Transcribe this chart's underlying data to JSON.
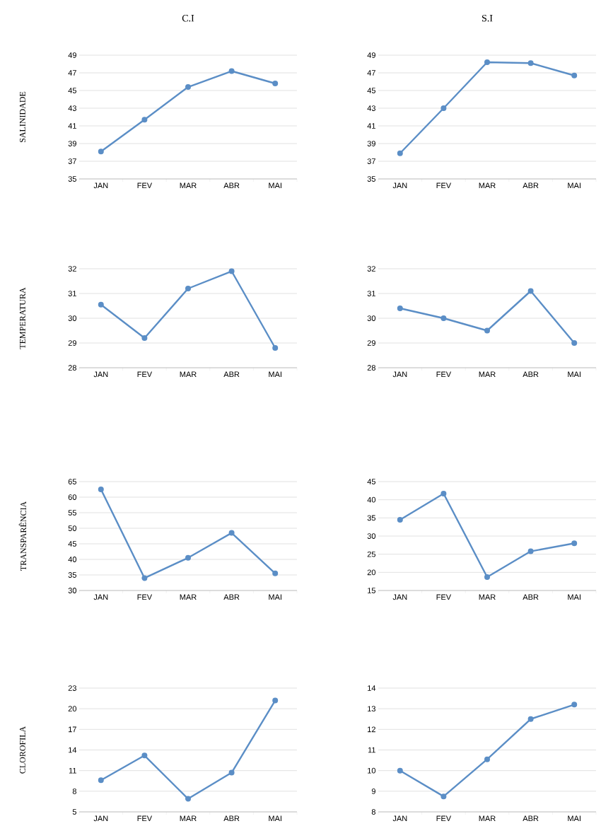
{
  "chart_data": [
    {
      "type": "line",
      "title": "C.I",
      "ylabel": "SALINIDADE",
      "categories": [
        "JAN",
        "FEV",
        "MAR",
        "ABR",
        "MAI"
      ],
      "series": [
        {
          "color": "#5b8ec6",
          "values": [
            38.1,
            41.7,
            45.4,
            47.2,
            45.8
          ]
        }
      ],
      "ylim": [
        35,
        49
      ],
      "yticks": [
        35,
        37,
        39,
        41,
        43,
        45,
        47,
        49
      ],
      "grid": "y",
      "marker": "circle"
    },
    {
      "type": "line",
      "title": "S.I",
      "categories": [
        "JAN",
        "FEV",
        "MAR",
        "ABR",
        "MAI"
      ],
      "series": [
        {
          "color": "#5b8ec6",
          "values": [
            37.9,
            43.0,
            48.2,
            48.1,
            46.7
          ]
        }
      ],
      "ylim": [
        35,
        49
      ],
      "yticks": [
        35,
        37,
        39,
        41,
        43,
        45,
        47,
        49
      ],
      "grid": "y",
      "marker": "circle"
    },
    {
      "type": "line",
      "ylabel": "TEMPERATURA",
      "categories": [
        "JAN",
        "FEV",
        "MAR",
        "ABR",
        "MAI"
      ],
      "series": [
        {
          "color": "#5b8ec6",
          "values": [
            30.55,
            29.2,
            31.2,
            31.9,
            28.8
          ]
        }
      ],
      "ylim": [
        28,
        32
      ],
      "yticks": [
        28,
        29,
        30,
        31,
        32
      ],
      "grid": "y",
      "marker": "circle"
    },
    {
      "type": "line",
      "categories": [
        "JAN",
        "FEV",
        "MAR",
        "ABR",
        "MAI"
      ],
      "series": [
        {
          "color": "#5b8ec6",
          "values": [
            30.4,
            30.0,
            29.5,
            31.1,
            29.0
          ]
        }
      ],
      "ylim": [
        28,
        32
      ],
      "yticks": [
        28,
        29,
        30,
        31,
        32
      ],
      "grid": "y",
      "marker": "circle"
    },
    {
      "type": "line",
      "ylabel": "TRANSPARÊNCIA",
      "categories": [
        "JAN",
        "FEV",
        "MAR",
        "ABR",
        "MAI"
      ],
      "series": [
        {
          "color": "#5b8ec6",
          "values": [
            62.5,
            34.0,
            40.5,
            48.5,
            35.5
          ]
        }
      ],
      "ylim": [
        30,
        65
      ],
      "yticks": [
        30,
        35,
        40,
        45,
        50,
        55,
        60,
        65
      ],
      "grid": "y",
      "marker": "circle"
    },
    {
      "type": "line",
      "categories": [
        "JAN",
        "FEV",
        "MAR",
        "ABR",
        "MAI"
      ],
      "series": [
        {
          "color": "#5b8ec6",
          "values": [
            34.5,
            41.7,
            18.7,
            25.8,
            28.0
          ]
        }
      ],
      "ylim": [
        15,
        45
      ],
      "yticks": [
        15,
        20,
        25,
        30,
        35,
        40,
        45
      ],
      "grid": "y",
      "marker": "circle"
    },
    {
      "type": "line",
      "ylabel": "CLOROFILA",
      "categories": [
        "JAN",
        "FEV",
        "MAR",
        "ABR",
        "MAI"
      ],
      "series": [
        {
          "color": "#5b8ec6",
          "values": [
            9.6,
            13.2,
            6.9,
            10.7,
            21.2
          ]
        }
      ],
      "ylim": [
        5,
        23
      ],
      "yticks": [
        5,
        8,
        11,
        14,
        17,
        20,
        23
      ],
      "grid": "y",
      "marker": "circle"
    },
    {
      "type": "line",
      "categories": [
        "JAN",
        "FEV",
        "MAR",
        "ABR",
        "MAI"
      ],
      "series": [
        {
          "color": "#5b8ec6",
          "values": [
            10.0,
            8.75,
            10.55,
            12.5,
            13.2
          ]
        }
      ],
      "ylim": [
        8,
        14
      ],
      "yticks": [
        8,
        9,
        10,
        11,
        12,
        13,
        14
      ],
      "grid": "y",
      "marker": "circle"
    }
  ]
}
